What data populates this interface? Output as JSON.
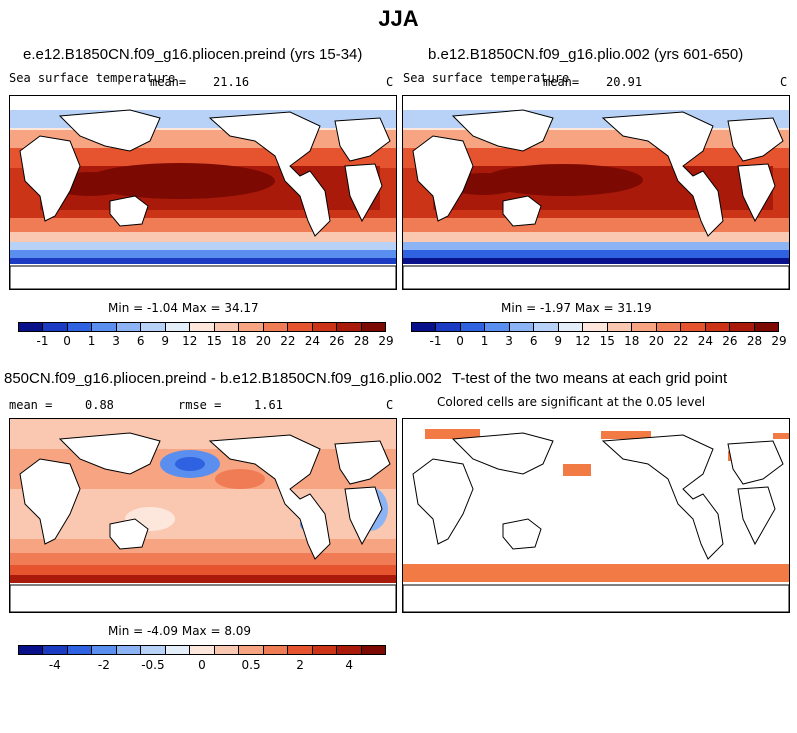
{
  "title": "JJA",
  "colors": {
    "sst": [
      "#08108a",
      "#1a3bc2",
      "#2f62e0",
      "#5a8ff0",
      "#8cb4f5",
      "#b8d2f7",
      "#e3eef9",
      "#fde7dc",
      "#fac8b0",
      "#f6a482",
      "#f07c55",
      "#e5532f",
      "#cc3418",
      "#aa1a0a",
      "#7d0a02"
    ],
    "diff": [
      "#08108a",
      "#1a3bc2",
      "#2f62e0",
      "#5a8ff0",
      "#8cb4f5",
      "#b8d2f7",
      "#e3eef9",
      "#fde7dc",
      "#fac8b0",
      "#f6a482",
      "#f07c55",
      "#e5532f",
      "#cc3418",
      "#aa1a0a",
      "#7d0a02"
    ],
    "sig": "#f27a45"
  },
  "panel1": {
    "title": "e.e12.B1850CN.f09_g16.pliocen.preind (yrs 15-34)",
    "variable": "Sea surface temperature",
    "mean_label": "mean=",
    "mean": "21.16",
    "units": "C",
    "stats": "Min =   -1.04 Max =  34.17",
    "ticks": [
      "-1",
      "0",
      "1",
      "3",
      "6",
      "9",
      "12",
      "15",
      "18",
      "20",
      "22",
      "24",
      "26",
      "28",
      "29"
    ]
  },
  "panel2": {
    "title": "b.e12.B1850CN.f09_g16.plio.002 (yrs 601-650)",
    "variable": "Sea surface temperature",
    "mean_label": "mean=",
    "mean": "20.91",
    "units": "C",
    "stats": "Min =   -1.97 Max =  31.19",
    "ticks": [
      "-1",
      "0",
      "1",
      "3",
      "6",
      "9",
      "12",
      "15",
      "18",
      "20",
      "22",
      "24",
      "26",
      "28",
      "29"
    ]
  },
  "panel3": {
    "title": "850CN.f09_g16.pliocen.preind - b.e12.B1850CN.f09_g16.plio.002",
    "mean_label": "mean =",
    "mean": "0.88",
    "rmse_label": "rmse =",
    "rmse": "1.61",
    "units": "C",
    "stats": "Min =   -4.09 Max =   8.09",
    "ticks": [
      "-4",
      "-2",
      "-0.5",
      "0",
      "0.5",
      "2",
      "4"
    ]
  },
  "panel4": {
    "title": "T-test of the two means at each grid point",
    "subtitle": "Colored cells are significant at the 0.05 level"
  }
}
